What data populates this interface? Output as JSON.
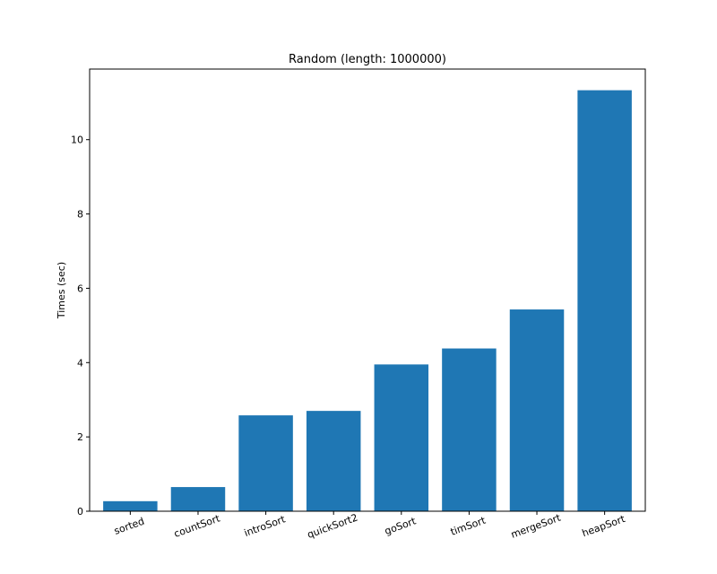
{
  "chart_data": {
    "type": "bar",
    "title": "Random (length: 1000000)",
    "xlabel": "",
    "ylabel": "Times (sec)",
    "categories": [
      "sorted",
      "countSort",
      "introSort",
      "quickSort2",
      "goSort",
      "timSort",
      "mergeSort",
      "heapSort"
    ],
    "values": [
      0.27,
      0.65,
      2.58,
      2.7,
      3.95,
      4.38,
      5.43,
      11.33
    ],
    "ylim": [
      0,
      11.9
    ],
    "yticks": [
      0,
      2,
      4,
      6,
      8,
      10
    ],
    "grid": false,
    "bar_color": "#1f77b4"
  }
}
